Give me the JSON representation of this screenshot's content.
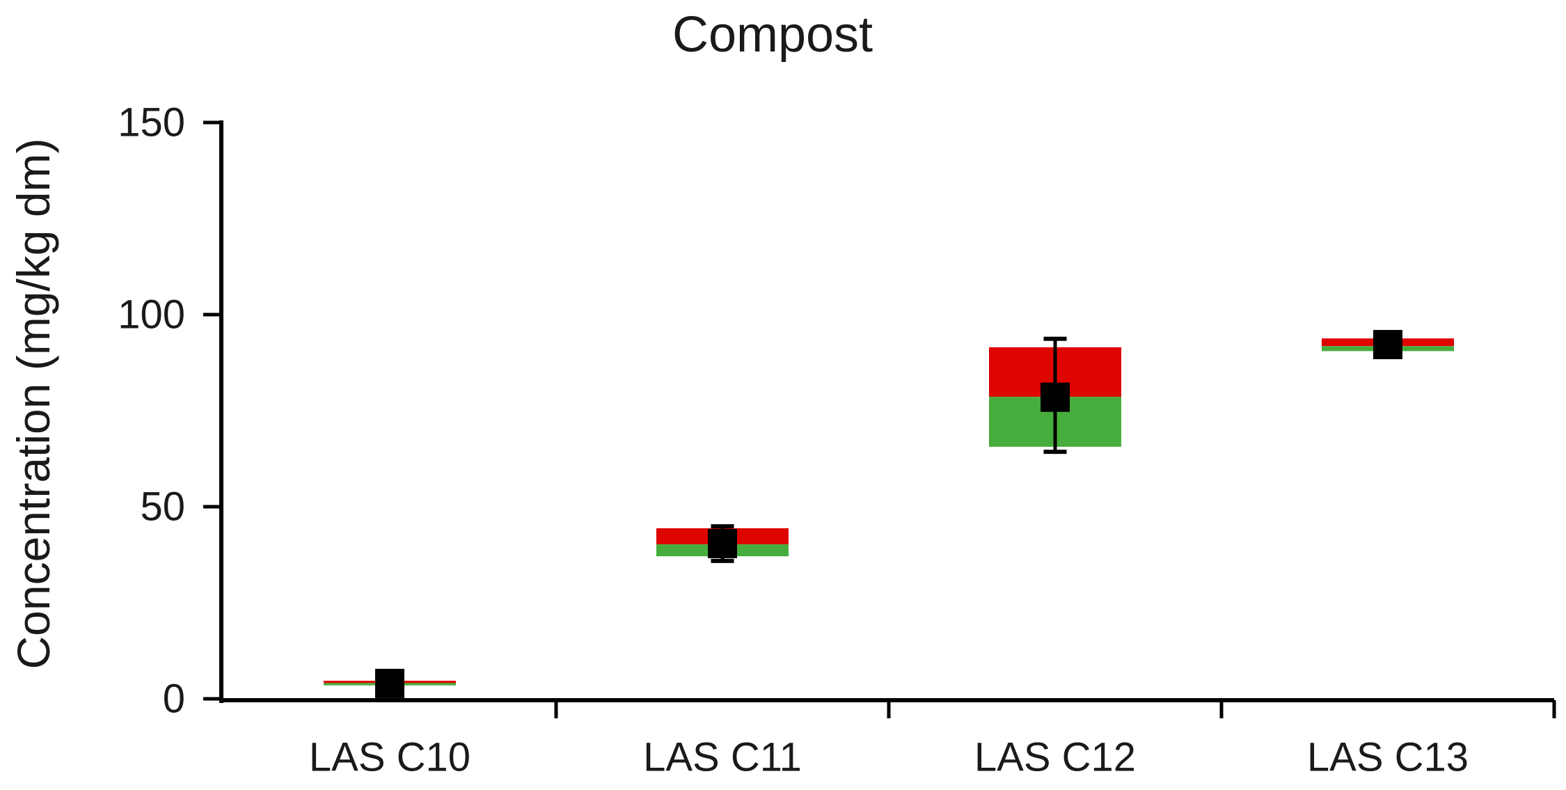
{
  "chart_data": {
    "type": "box",
    "title": "Compost",
    "ylabel": "Concentration (mg/kg dm)",
    "xlabel": "",
    "ylim": [
      0,
      150
    ],
    "yticks": [
      0,
      50,
      100,
      150
    ],
    "grid": false,
    "legend": null,
    "categories": [
      "LAS C10",
      "LAS C11",
      "LAS C12",
      "LAS C13"
    ],
    "series": [
      {
        "category": "LAS C10",
        "q1": 3.5,
        "median": 4.1,
        "q3": 4.7,
        "mean": 4.0,
        "whisker_low": 3.3,
        "whisker_high": 4.9
      },
      {
        "category": "LAS C11",
        "q1": 37.1,
        "median": 40.2,
        "q3": 44.4,
        "mean": 40.4,
        "whisker_low": 35.9,
        "whisker_high": 44.9
      },
      {
        "category": "LAS C12",
        "q1": 65.6,
        "median": 78.6,
        "q3": 91.5,
        "mean": 78.5,
        "whisker_low": 64.3,
        "whisker_high": 93.7
      },
      {
        "category": "LAS C13",
        "q1": 90.5,
        "median": 91.8,
        "q3": 93.8,
        "mean": 92.2,
        "whisker_low": 89.5,
        "whisker_high": 94.0
      }
    ],
    "colors": {
      "upper_box": "#de0400",
      "lower_box": "#47ad3c",
      "marker": "#000000",
      "whisker": "#000000",
      "axis": "#000000"
    }
  }
}
